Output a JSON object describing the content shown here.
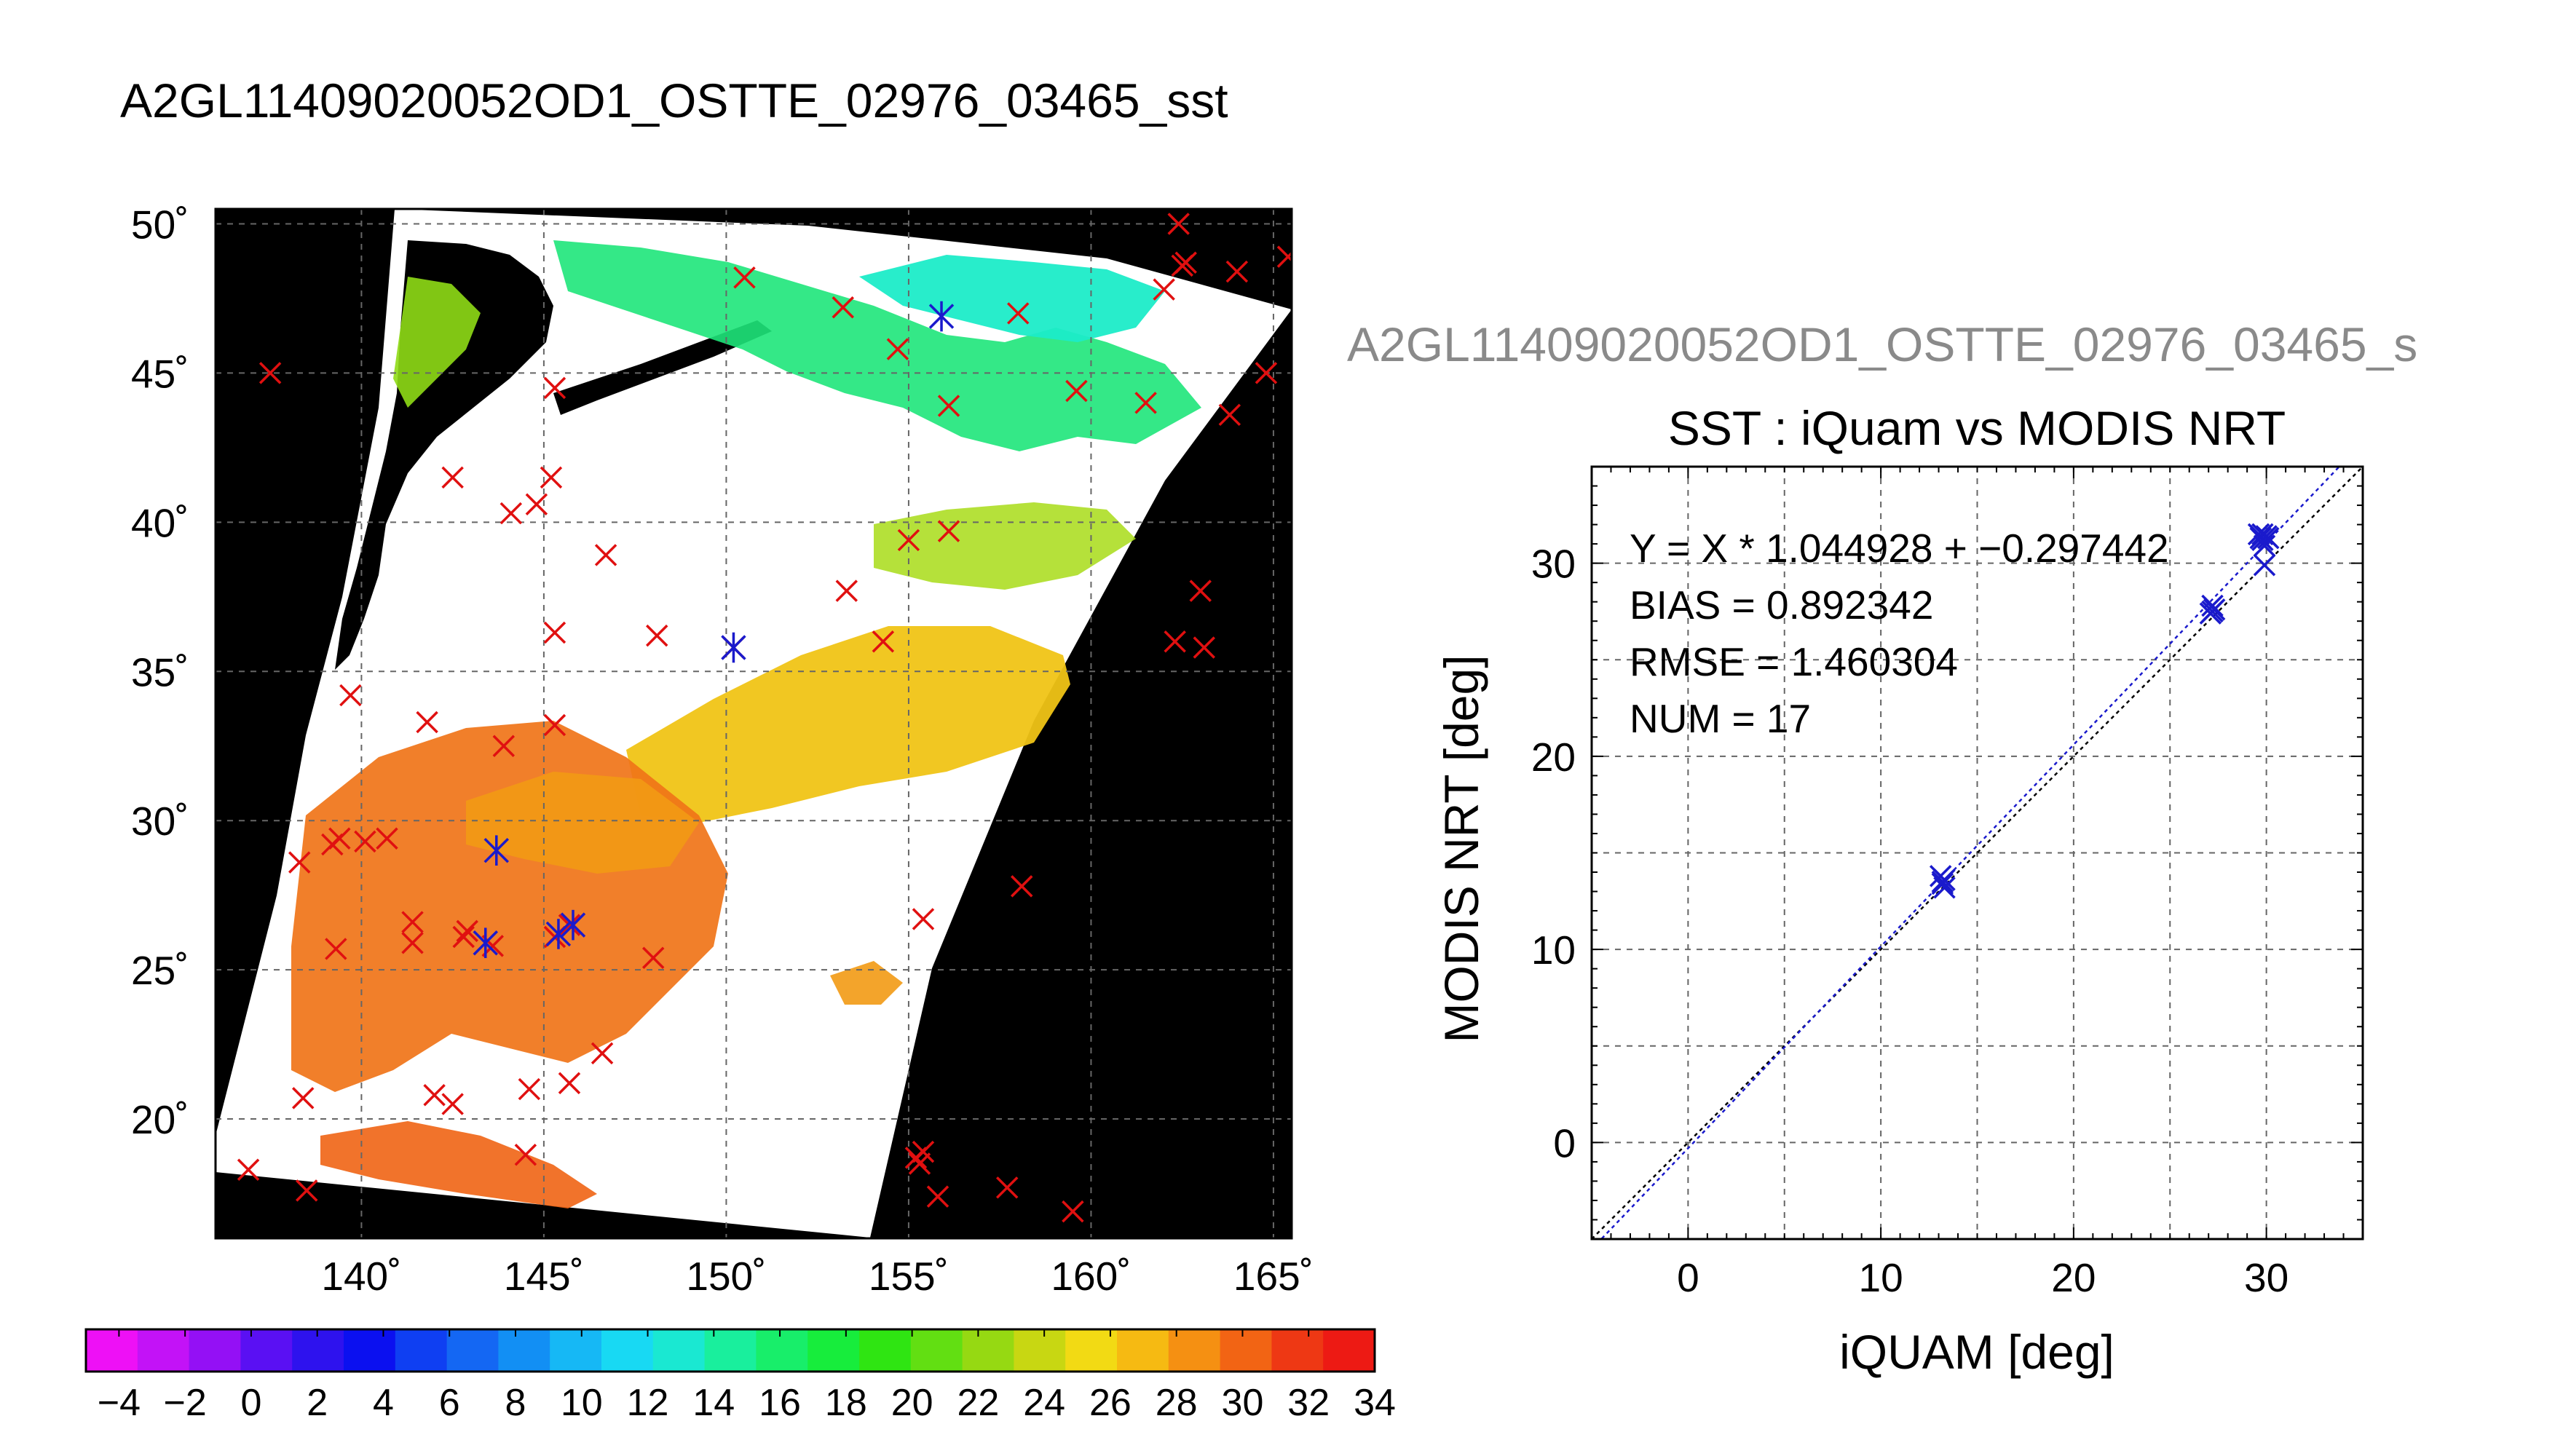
{
  "main_title": "A2GL11409020052OD1_OSTTE_02976_03465_sst",
  "map": {
    "lat_labels": [
      "50˚",
      "45˚",
      "40˚",
      "35˚",
      "30˚",
      "25˚",
      "20˚"
    ],
    "lon_labels": [
      "140˚",
      "145˚",
      "150˚",
      "155˚",
      "160˚",
      "165˚"
    ]
  },
  "colorbar": {
    "labels": [
      "−4",
      "−2",
      "0",
      "2",
      "4",
      "6",
      "8",
      "10",
      "12",
      "14",
      "16",
      "18",
      "20",
      "22",
      "24",
      "26",
      "28",
      "30",
      "32",
      "34"
    ],
    "colors": [
      "#ee10f6",
      "#c312f7",
      "#9410f5",
      "#5a10f3",
      "#2e12ee",
      "#0b10f0",
      "#0f3ff2",
      "#1467f3",
      "#128ff4",
      "#16b8f5",
      "#18d9f3",
      "#1ae8d2",
      "#19ef9d",
      "#18ee6a",
      "#17ed3c",
      "#2fe512",
      "#62df12",
      "#96d912",
      "#c8d712",
      "#f2da14",
      "#f6ba12",
      "#f59012",
      "#f26414",
      "#ee3814",
      "#ed1a14"
    ]
  },
  "legend_text": {
    "ghost_title": "A2GL11409020052OD1_OSTTE_02976_03465_s",
    "scatter_title": "SST : iQuam vs MODIS NRT",
    "fit_equation": "Y = X * 1.044928 + −0.297442",
    "bias": "BIAS = 0.892342",
    "rmse": "RMSE = 1.460304",
    "num": "NUM = 17"
  },
  "chart_data": [
    {
      "type": "scatter",
      "title": "A2GL11409020052OD1_OSTTE_02976_03465_sst",
      "projection": "map",
      "xlabel": "",
      "ylabel": "",
      "xlim": [
        136,
        165.5
      ],
      "ylim": [
        16,
        50.5
      ],
      "x_ticks": [
        140,
        145,
        150,
        155,
        160,
        165
      ],
      "y_ticks": [
        20,
        25,
        30,
        35,
        40,
        45,
        50
      ],
      "grid": true,
      "colorbar_range": [
        -4,
        35
      ],
      "series": [
        {
          "marker": "x",
          "color": "#e01010",
          "points": [
            [
              162.4,
              50
            ],
            [
              162.5,
              48.6
            ],
            [
              162.6,
              48.7
            ],
            [
              164,
              48.4
            ],
            [
              165.4,
              48.9
            ],
            [
              162,
              47.8
            ],
            [
              150.5,
              48.2
            ],
            [
              153.2,
              47.2
            ],
            [
              158,
              47
            ],
            [
              137.5,
              45
            ],
            [
              145.3,
              44.5
            ],
            [
              154.7,
              45.8
            ],
            [
              159.6,
              44.4
            ],
            [
              161.5,
              44
            ],
            [
              156.1,
              43.9
            ],
            [
              163.8,
              43.6
            ],
            [
              164.8,
              45
            ],
            [
              142.5,
              41.5
            ],
            [
              145.2,
              41.5
            ],
            [
              144.1,
              40.3
            ],
            [
              144.8,
              40.6
            ],
            [
              146.7,
              38.9
            ],
            [
              155,
              39.4
            ],
            [
              156.1,
              39.7
            ],
            [
              153.3,
              37.7
            ],
            [
              163,
              37.7
            ],
            [
              145.3,
              36.3
            ],
            [
              148.1,
              36.2
            ],
            [
              150.2,
              35.8
            ],
            [
              154.3,
              36
            ],
            [
              162.3,
              36
            ],
            [
              163.1,
              35.8
            ],
            [
              139.7,
              34.2
            ],
            [
              141.8,
              33.3
            ],
            [
              143.9,
              32.5
            ],
            [
              145.3,
              33.2
            ],
            [
              138.3,
              28.6
            ],
            [
              139.2,
              29.2
            ],
            [
              139.4,
              29.4
            ],
            [
              140.1,
              29.3
            ],
            [
              140.7,
              29.4
            ],
            [
              141.4,
              26.6
            ],
            [
              142.9,
              26.3
            ],
            [
              142.8,
              26.1
            ],
            [
              143.6,
              25.8
            ],
            [
              139.3,
              25.7
            ],
            [
              141.4,
              25.9
            ],
            [
              145.7,
              26.5
            ],
            [
              145.3,
              26.1
            ],
            [
              148,
              25.4
            ],
            [
              155.4,
              26.7
            ],
            [
              158.1,
              27.8
            ],
            [
              138.4,
              20.7
            ],
            [
              142,
              20.8
            ],
            [
              142.5,
              20.5
            ],
            [
              144.6,
              21
            ],
            [
              145.7,
              21.2
            ],
            [
              146.6,
              22.2
            ],
            [
              144.5,
              18.8
            ],
            [
              136.9,
              18.3
            ],
            [
              138.5,
              17.6
            ],
            [
              155.2,
              18.7
            ],
            [
              155.3,
              18.5
            ],
            [
              155.4,
              18.9
            ],
            [
              155.8,
              17.4
            ],
            [
              157.7,
              17.7
            ],
            [
              159.5,
              16.9
            ]
          ]
        },
        {
          "marker": "*",
          "color": "#1a1acc",
          "points": [
            [
              155.9,
              46.9
            ],
            [
              150.2,
              35.8
            ],
            [
              143.7,
              29
            ],
            [
              143.4,
              25.9
            ],
            [
              145.4,
              26.2
            ],
            [
              145.8,
              26.5
            ]
          ]
        }
      ]
    },
    {
      "type": "scatter",
      "title": "SST : iQuam vs MODIS NRT",
      "xlabel": "iQUAM [deg]",
      "ylabel": "MODIS NRT [deg]",
      "xlim": [
        -5,
        35
      ],
      "ylim": [
        -5,
        35
      ],
      "x_ticks": [
        0,
        10,
        20,
        30
      ],
      "y_ticks": [
        0,
        10,
        20,
        30
      ],
      "grid": true,
      "series": [
        {
          "marker": "x",
          "color": "#1a1acc",
          "points": [
            [
              13.1,
              13.8
            ],
            [
              13.2,
              13.5
            ],
            [
              13.3,
              13.2
            ],
            [
              27.1,
              27.4
            ],
            [
              27.2,
              27.8
            ],
            [
              29.6,
              31.5
            ],
            [
              29.8,
              31.2
            ],
            [
              30,
              31.4
            ],
            [
              29.9,
              30.9
            ],
            [
              29.9,
              29.9
            ],
            [
              27.3,
              27.6
            ],
            [
              13.2,
              13.4
            ],
            [
              29.7,
              31.3
            ],
            [
              30.1,
              31.3
            ],
            [
              29.8,
              31.5
            ],
            [
              13.3,
              13.6
            ],
            [
              27.2,
              27.5
            ]
          ]
        }
      ],
      "lines": [
        {
          "name": "",
          "slope": 1.0,
          "intercept": 0.0,
          "color": "#000000",
          "dash": "dotted"
        },
        {
          "name": "",
          "slope": 1.044928,
          "intercept": -0.297442,
          "color": "#1a1acc",
          "dash": "dotted"
        }
      ]
    }
  ]
}
